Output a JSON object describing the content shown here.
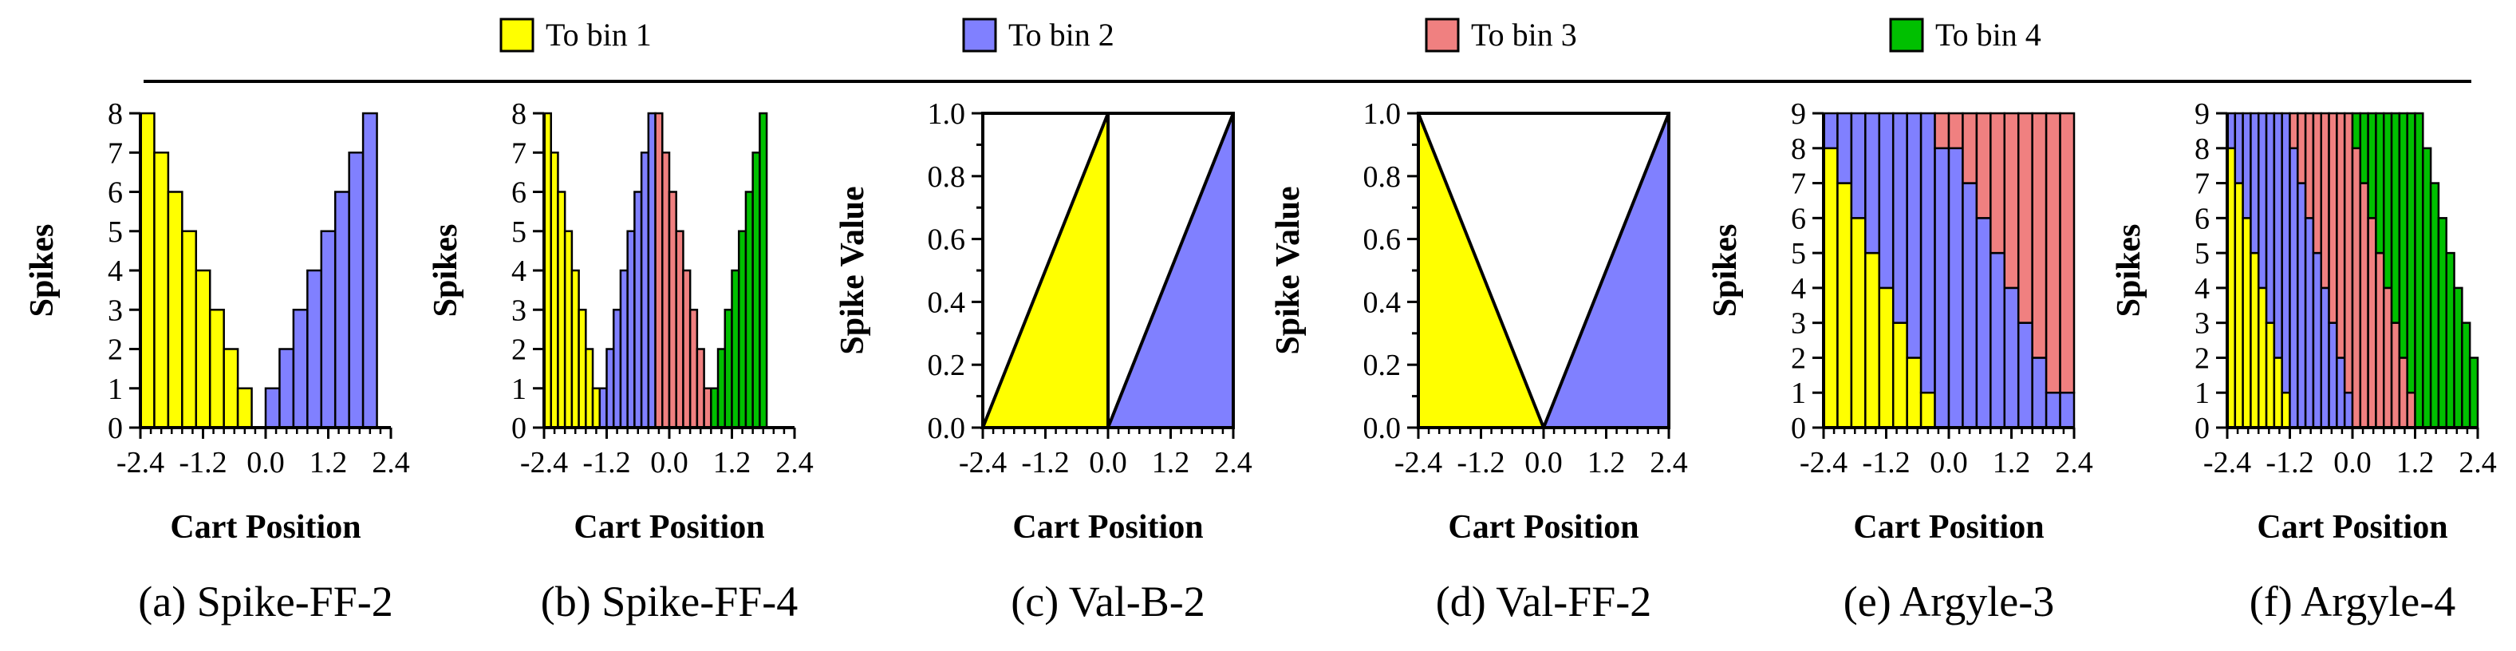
{
  "legend": {
    "items": [
      {
        "label": "To bin 1",
        "color": "#ffff00"
      },
      {
        "label": "To bin 2",
        "color": "#8080ff"
      },
      {
        "label": "To bin 3",
        "color": "#f08080"
      },
      {
        "label": "To bin 4",
        "color": "#00c000"
      }
    ]
  },
  "chart_data": [
    {
      "id": "a",
      "type": "bar",
      "stacked": true,
      "caption": "(a) Spike-FF-2",
      "xlabel": "Cart Position",
      "ylabel": "Spikes",
      "xlim": [
        -2.4,
        2.4
      ],
      "ylim": [
        0,
        8
      ],
      "xticks": [
        "-2.4",
        "-1.2",
        "0.0",
        "1.2",
        "2.4"
      ],
      "yticks": [
        "0",
        "1",
        "2",
        "3",
        "4",
        "5",
        "6",
        "7",
        "8"
      ],
      "series": [
        {
          "name": "To bin 1",
          "color": "#ffff00",
          "values": [
            8,
            7,
            6,
            5,
            4,
            3,
            2,
            1,
            0,
            0,
            0,
            0,
            0,
            0,
            0,
            0,
            0,
            0
          ]
        },
        {
          "name": "To bin 2",
          "color": "#8080ff",
          "values": [
            0,
            0,
            0,
            0,
            0,
            0,
            0,
            0,
            0,
            1,
            2,
            3,
            4,
            5,
            6,
            7,
            8,
            0
          ]
        }
      ]
    },
    {
      "id": "b",
      "type": "bar",
      "stacked": true,
      "caption": "(b) Spike-FF-4",
      "xlabel": "Cart Position",
      "ylabel": "Spikes",
      "xlim": [
        -2.4,
        2.4
      ],
      "ylim": [
        0,
        8
      ],
      "xticks": [
        "-2.4",
        "-1.2",
        "0.0",
        "1.2",
        "2.4"
      ],
      "yticks": [
        "0",
        "1",
        "2",
        "3",
        "4",
        "5",
        "6",
        "7",
        "8"
      ],
      "series": [
        {
          "name": "To bin 1",
          "color": "#ffff00",
          "values": [
            8,
            7,
            6,
            5,
            4,
            3,
            2,
            1,
            0,
            0,
            0,
            0,
            0,
            0,
            0,
            0,
            0,
            0,
            0,
            0,
            0,
            0,
            0,
            0,
            0,
            0,
            0,
            0,
            0,
            0,
            0,
            0,
            0,
            0,
            0,
            0
          ]
        },
        {
          "name": "To bin 2",
          "color": "#8080ff",
          "values": [
            0,
            0,
            0,
            0,
            0,
            0,
            0,
            0,
            1,
            2,
            3,
            4,
            5,
            6,
            7,
            8,
            0,
            0,
            0,
            0,
            0,
            0,
            0,
            0,
            0,
            0,
            0,
            0,
            0,
            0,
            0,
            0,
            0,
            0,
            0,
            0
          ]
        },
        {
          "name": "To bin 3",
          "color": "#f08080",
          "values": [
            0,
            0,
            0,
            0,
            0,
            0,
            0,
            0,
            0,
            0,
            0,
            0,
            0,
            0,
            0,
            0,
            8,
            7,
            6,
            5,
            4,
            3,
            2,
            1,
            0,
            0,
            0,
            0,
            0,
            0,
            0,
            0,
            0,
            0,
            0,
            0
          ]
        },
        {
          "name": "To bin 4",
          "color": "#00c000",
          "values": [
            0,
            0,
            0,
            0,
            0,
            0,
            0,
            0,
            0,
            0,
            0,
            0,
            0,
            0,
            0,
            0,
            0,
            0,
            0,
            0,
            0,
            0,
            0,
            0,
            1,
            2,
            3,
            4,
            5,
            6,
            7,
            8,
            0,
            0,
            0,
            0
          ]
        }
      ]
    },
    {
      "id": "c",
      "type": "area",
      "caption": "(c) Val-B-2",
      "xlabel": "Cart Position",
      "ylabel": "Spike Value",
      "xlim": [
        -2.4,
        2.4
      ],
      "ylim": [
        0,
        1.0
      ],
      "xticks": [
        "-2.4",
        "-1.2",
        "0.0",
        "1.2",
        "2.4"
      ],
      "yticks": [
        "0.0",
        "0.2",
        "0.4",
        "0.6",
        "0.8",
        "1.0"
      ],
      "series": [
        {
          "name": "To bin 1",
          "color": "#ffff00",
          "x": [
            -2.4,
            0.0,
            0.0
          ],
          "y": [
            0.0,
            1.0,
            0.0
          ]
        },
        {
          "name": "To bin 2",
          "color": "#8080ff",
          "x": [
            0.0,
            2.4,
            2.4
          ],
          "y": [
            0.0,
            1.0,
            0.0
          ]
        }
      ]
    },
    {
      "id": "d",
      "type": "area",
      "caption": "(d) Val-FF-2",
      "xlabel": "Cart Position",
      "ylabel": "Spike Value",
      "xlim": [
        -2.4,
        2.4
      ],
      "ylim": [
        0,
        1.0
      ],
      "xticks": [
        "-2.4",
        "-1.2",
        "0.0",
        "1.2",
        "2.4"
      ],
      "yticks": [
        "0.0",
        "0.2",
        "0.4",
        "0.6",
        "0.8",
        "1.0"
      ],
      "series": [
        {
          "name": "To bin 1",
          "color": "#ffff00",
          "x": [
            -2.4,
            -2.4,
            0.0
          ],
          "y": [
            0.0,
            1.0,
            0.0
          ]
        },
        {
          "name": "To bin 2",
          "color": "#8080ff",
          "x": [
            0.0,
            2.4,
            2.4
          ],
          "y": [
            0.0,
            1.0,
            0.0
          ]
        }
      ]
    },
    {
      "id": "e",
      "type": "bar",
      "stacked": true,
      "caption": "(e) Argyle-3",
      "xlabel": "Cart Position",
      "ylabel": "Spikes",
      "xlim": [
        -2.4,
        2.4
      ],
      "ylim": [
        0,
        9
      ],
      "xticks": [
        "-2.4",
        "-1.2",
        "0.0",
        "1.2",
        "2.4"
      ],
      "yticks": [
        "0",
        "1",
        "2",
        "3",
        "4",
        "5",
        "6",
        "7",
        "8",
        "9"
      ],
      "series": [
        {
          "name": "To bin 1",
          "color": "#ffff00",
          "values": [
            8,
            7,
            6,
            5,
            4,
            3,
            2,
            1,
            0,
            0,
            0,
            0,
            0,
            0,
            0,
            0,
            0,
            0
          ]
        },
        {
          "name": "To bin 2",
          "color": "#8080ff",
          "values": [
            1,
            2,
            3,
            4,
            5,
            6,
            7,
            8,
            8,
            8,
            7,
            6,
            5,
            4,
            3,
            2,
            1,
            1
          ]
        },
        {
          "name": "To bin 3",
          "color": "#f08080",
          "values": [
            0,
            0,
            0,
            0,
            0,
            0,
            0,
            0,
            1,
            1,
            2,
            3,
            4,
            5,
            6,
            7,
            8,
            8
          ]
        }
      ]
    },
    {
      "id": "f",
      "type": "bar",
      "stacked": true,
      "caption": "(f) Argyle-4",
      "xlabel": "Cart Position",
      "ylabel": "Spikes",
      "xlim": [
        -2.4,
        2.4
      ],
      "ylim": [
        0,
        9
      ],
      "xticks": [
        "-2.4",
        "-1.2",
        "0.0",
        "1.2",
        "2.4"
      ],
      "yticks": [
        "0",
        "1",
        "2",
        "3",
        "4",
        "5",
        "6",
        "7",
        "8",
        "9"
      ],
      "series": [
        {
          "name": "To bin 1",
          "color": "#ffff00",
          "values": [
            8,
            7,
            6,
            5,
            4,
            3,
            2,
            1,
            0,
            0,
            0,
            0,
            0,
            0,
            0,
            0,
            0,
            0,
            0,
            0,
            0,
            0,
            0,
            0,
            0,
            0,
            0,
            0,
            0,
            0,
            0,
            0
          ]
        },
        {
          "name": "To bin 2",
          "color": "#8080ff",
          "values": [
            1,
            2,
            3,
            4,
            5,
            6,
            7,
            8,
            8,
            7,
            6,
            5,
            4,
            3,
            2,
            1,
            0,
            0,
            0,
            0,
            0,
            0,
            0,
            0,
            0,
            0,
            0,
            0,
            0,
            0,
            0,
            0
          ]
        },
        {
          "name": "To bin 3",
          "color": "#f08080",
          "values": [
            0,
            0,
            0,
            0,
            0,
            0,
            0,
            0,
            1,
            2,
            3,
            4,
            5,
            6,
            7,
            8,
            8,
            7,
            6,
            5,
            4,
            3,
            2,
            1,
            0,
            0,
            0,
            0,
            0,
            0,
            0,
            0
          ]
        },
        {
          "name": "To bin 4",
          "color": "#00c000",
          "values": [
            0,
            0,
            0,
            0,
            0,
            0,
            0,
            0,
            0,
            0,
            0,
            0,
            0,
            0,
            0,
            0,
            1,
            2,
            3,
            4,
            5,
            6,
            7,
            8,
            9,
            8,
            7,
            6,
            5,
            4,
            3,
            2
          ]
        }
      ]
    }
  ]
}
